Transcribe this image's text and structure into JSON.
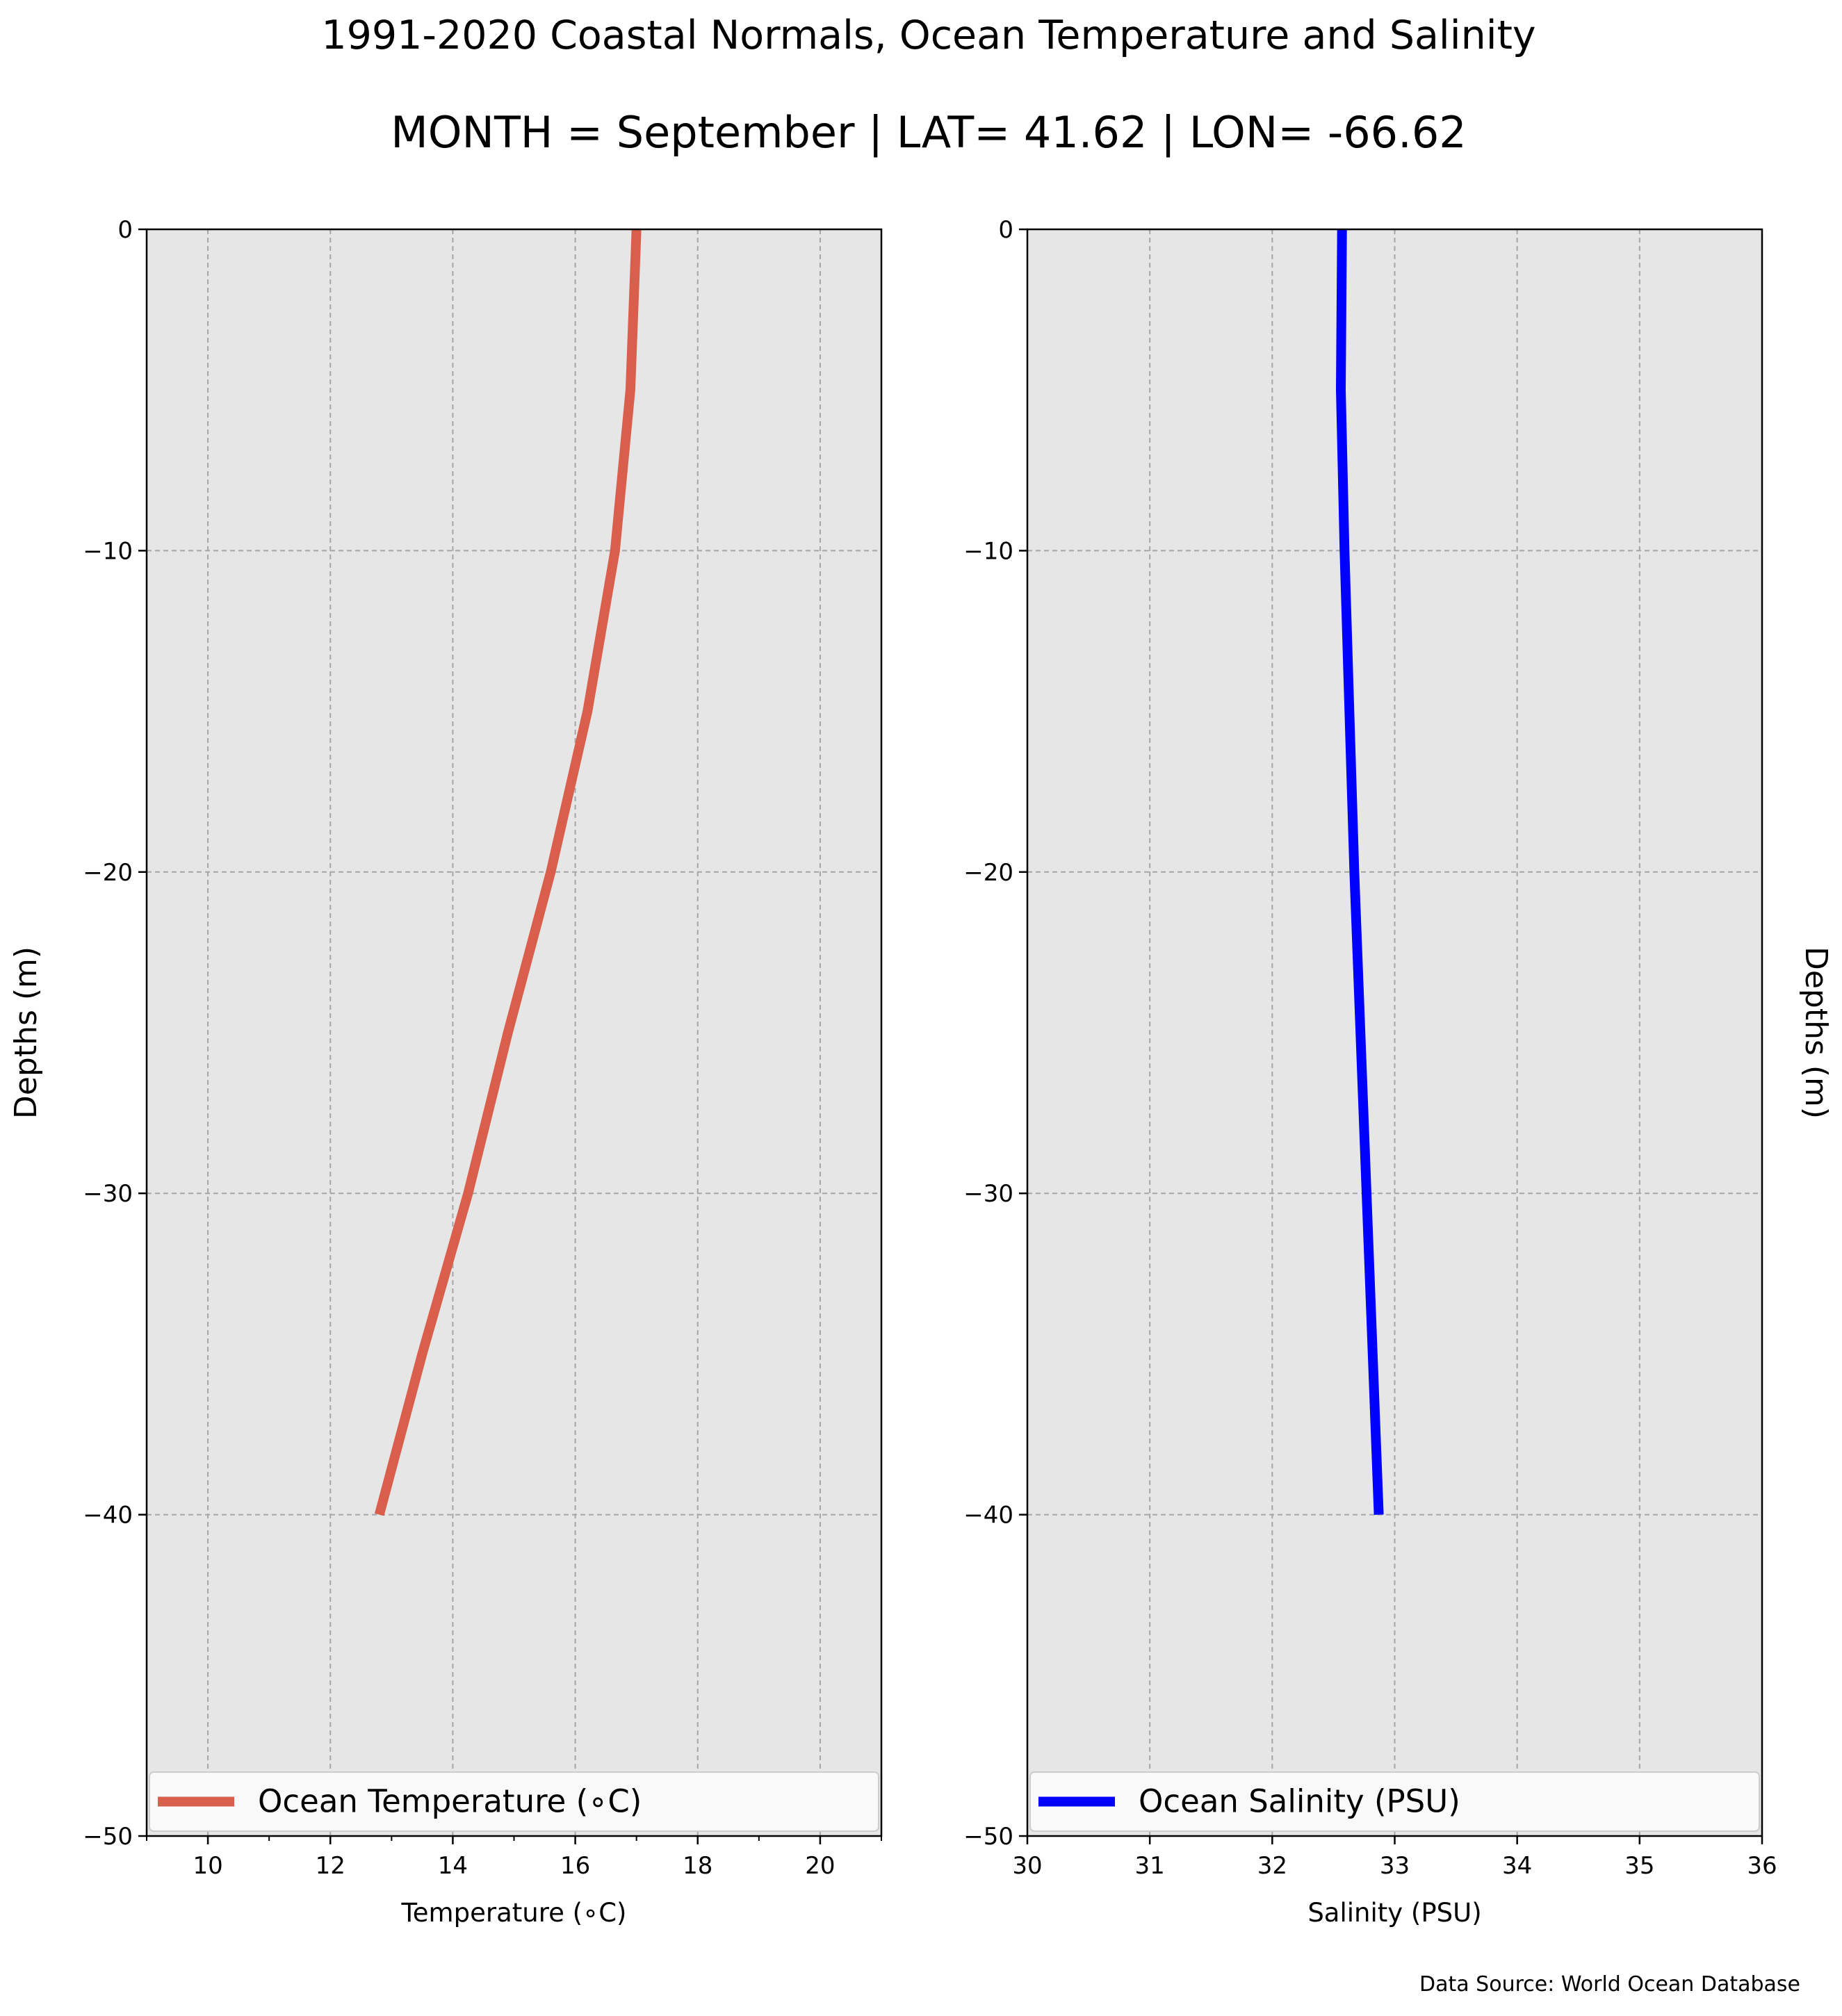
{
  "title": "1991-2020 Coastal Normals, Ocean Temperature and Salinity",
  "subtitle": "MONTH = September | LAT= 41.62 | LON= -66.62",
  "source_note": "Data Source: World Ocean Database",
  "chart_data": [
    {
      "type": "line",
      "orientation": "vertical-profile",
      "xlabel": "Temperature ($^\\circ$C)",
      "xlabel_display": "Temperature (∘C)",
      "ylabel": "Depths (m)",
      "ylabel_position": "left",
      "xlim": [
        9,
        21
      ],
      "ylim": [
        -50,
        0
      ],
      "x_major_ticks": [
        10,
        12,
        14,
        16,
        18,
        20
      ],
      "x_minor_ticks": [
        9,
        11,
        13,
        15,
        17,
        19,
        21
      ],
      "x_tick_labels": [
        "10",
        "12",
        "14",
        "16",
        "18",
        "20"
      ],
      "y_ticks": [
        0,
        -10,
        -20,
        -30,
        -40,
        -50
      ],
      "y_tick_labels": [
        "0",
        "−10",
        "−20",
        "−30",
        "−40",
        "−50"
      ],
      "grid": true,
      "grid_style": "dashed",
      "background": "#e6e6e6",
      "legend": "lower center",
      "series": [
        {
          "name": "Ocean Temperature (∘C)",
          "color": "#d95f4c",
          "x": [
            17.0,
            16.9,
            16.65,
            16.2,
            15.6,
            14.9,
            14.25,
            13.5,
            12.8
          ],
          "y": [
            0,
            -5,
            -10,
            -15,
            -20,
            -25,
            -30,
            -35,
            -40
          ]
        }
      ]
    },
    {
      "type": "line",
      "orientation": "vertical-profile",
      "xlabel": "Salinity (PSU)",
      "ylabel": "Depths (m)",
      "ylabel_position": "right",
      "xlim": [
        30,
        36
      ],
      "ylim": [
        -50,
        0
      ],
      "x_major_ticks": [
        30,
        31,
        32,
        33,
        34,
        35,
        36
      ],
      "x_tick_labels": [
        "30",
        "31",
        "32",
        "33",
        "34",
        "35",
        "36"
      ],
      "y_ticks": [
        0,
        -10,
        -20,
        -30,
        -40,
        -50
      ],
      "y_tick_labels": [
        "0",
        "−10",
        "−20",
        "−30",
        "−40",
        "−50"
      ],
      "grid": true,
      "grid_style": "dashed",
      "background": "#e6e6e6",
      "legend": "lower center",
      "series": [
        {
          "name": "Ocean Salinity (PSU)",
          "color": "#0000ff",
          "x": [
            32.57,
            32.56,
            32.59,
            32.63,
            32.67,
            32.72,
            32.77,
            32.82,
            32.87
          ],
          "y": [
            0,
            -5,
            -10,
            -15,
            -20,
            -25,
            -30,
            -35,
            -40
          ]
        }
      ]
    }
  ]
}
